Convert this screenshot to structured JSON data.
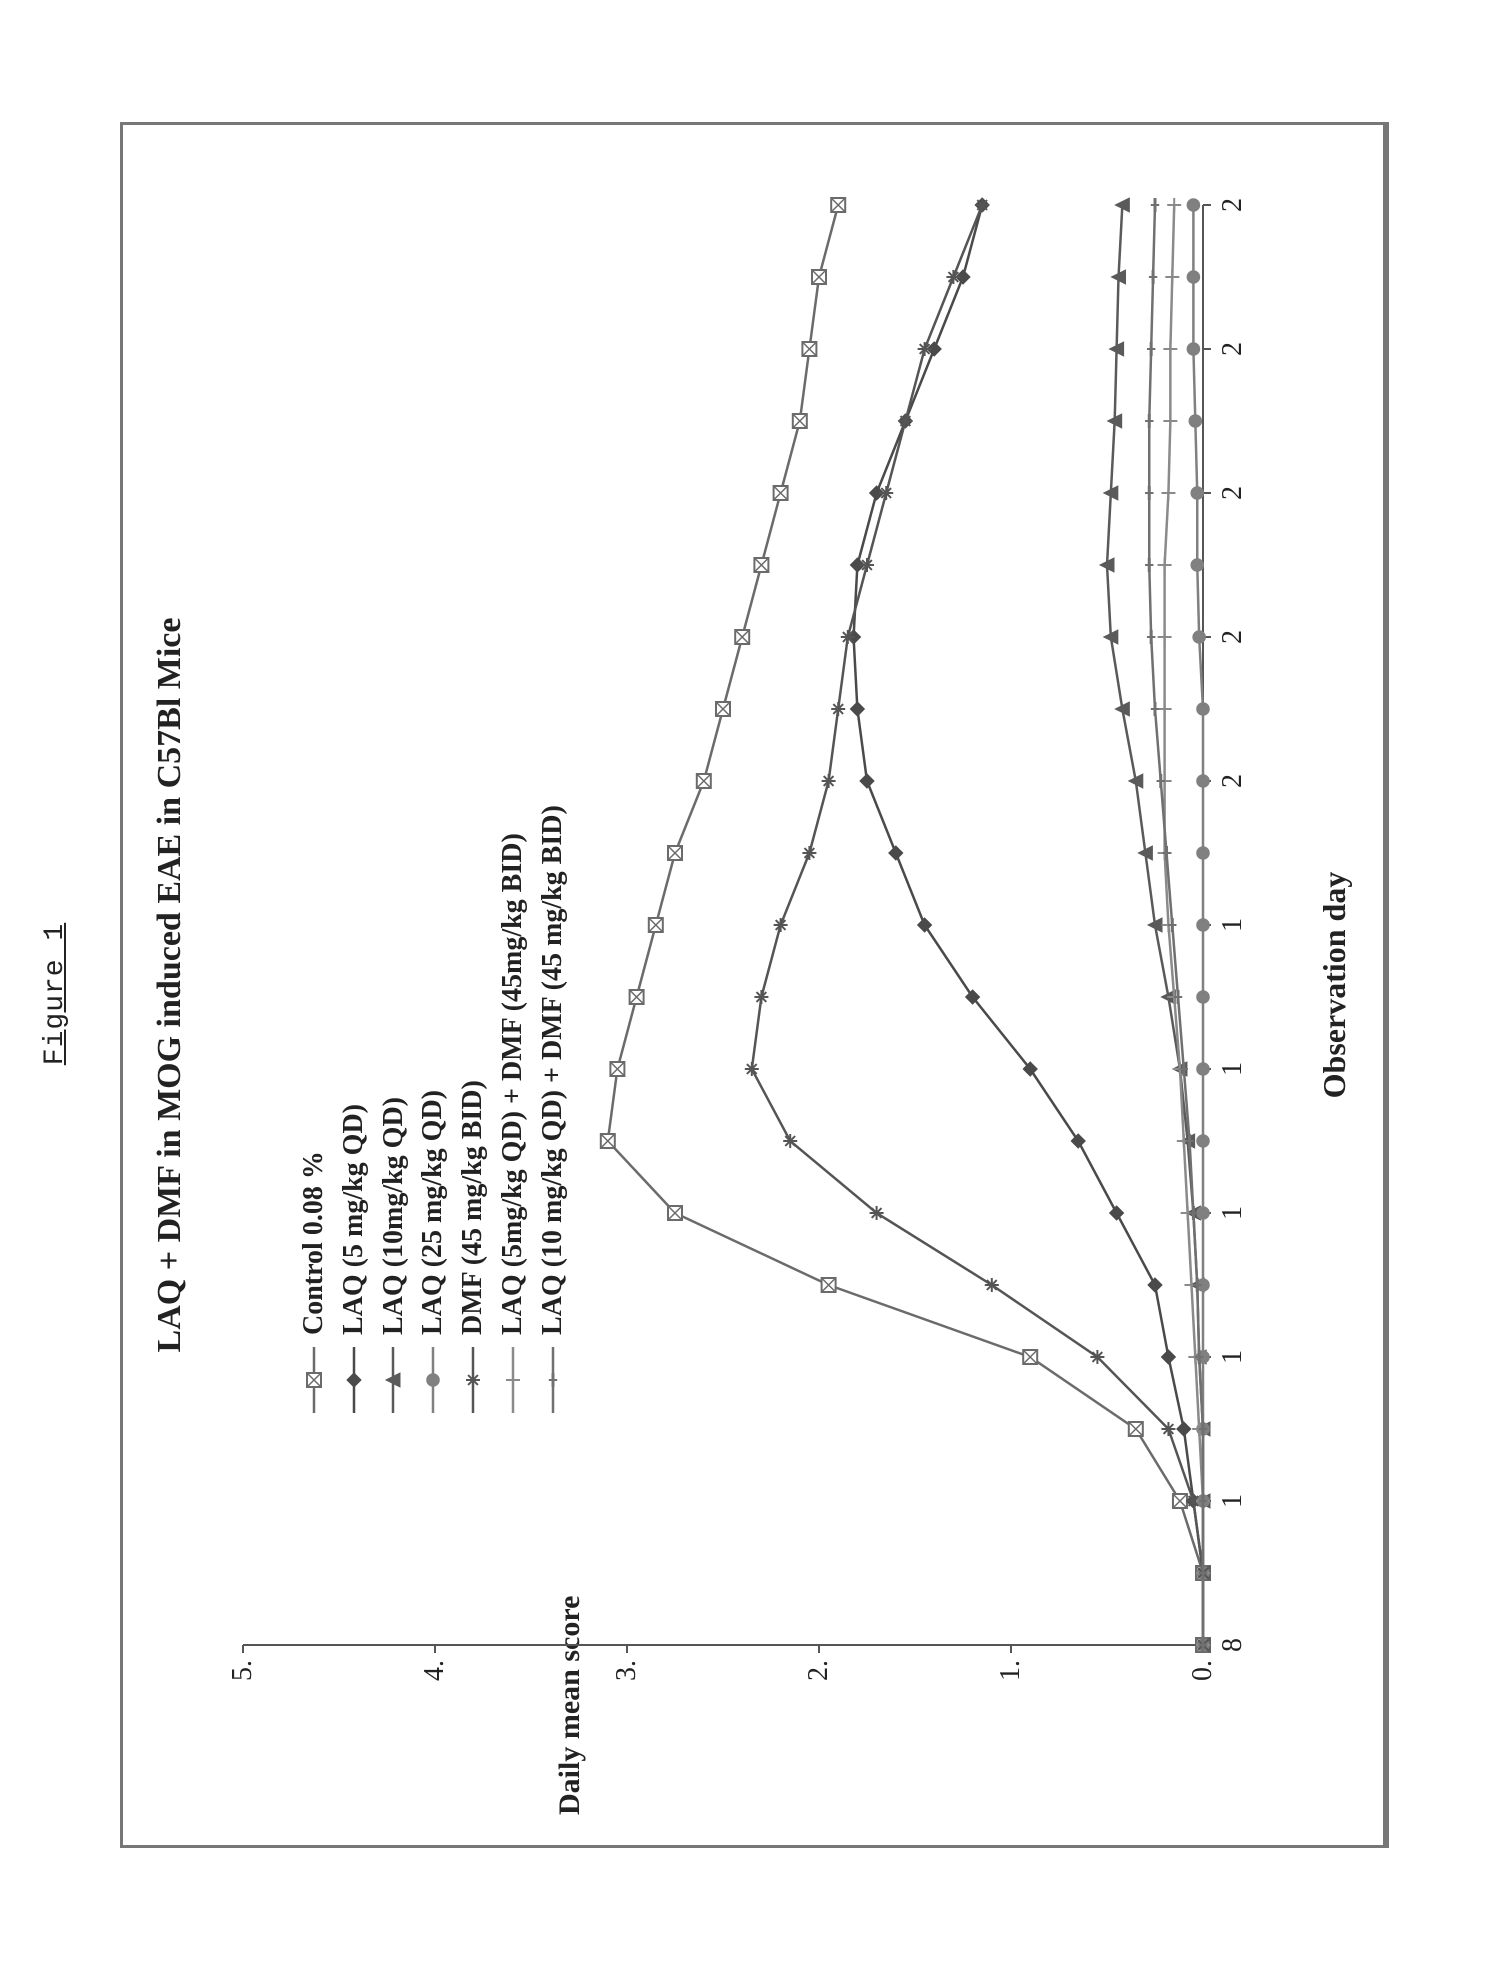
{
  "figure_caption": "Figure 1",
  "chart": {
    "type": "line",
    "title": "LAQ + DMF in MOG induced EAE in C57Bl Mice",
    "title_fontsize": 34,
    "xlabel": "Observation day",
    "ylabel": "Daily mean score",
    "label_fontsize": 30,
    "tick_fontsize": 28,
    "background_color": "#ffffff",
    "frame_border_color": "#777777",
    "axis_color": "#555555",
    "xlim": [
      8,
      28
    ],
    "ylim": [
      0,
      5
    ],
    "ytick_step": 1,
    "x_ticks": [
      8,
      10,
      12,
      14,
      16,
      18,
      20,
      22,
      24,
      26,
      28
    ],
    "x_tick_labels": [
      "8",
      "1",
      "1",
      "1",
      "1",
      "1",
      "2",
      "2",
      "2",
      "2",
      "2"
    ],
    "y_ticks": [
      0,
      1,
      2,
      3,
      4,
      5
    ],
    "y_tick_labels": [
      "0.",
      "1.",
      "2.",
      "3.",
      "4.",
      "5."
    ],
    "x_day_values": [
      8,
      9,
      10,
      11,
      12,
      13,
      14,
      15,
      16,
      17,
      18,
      19,
      20,
      21,
      22,
      23,
      24,
      25,
      26,
      27,
      28
    ],
    "line_width": 2.5,
    "marker_size": 7,
    "series": [
      {
        "name": "Control 0.08 %",
        "marker": "square-x",
        "color": "#6b6b6b",
        "y": [
          0,
          0,
          0.12,
          0.35,
          0.9,
          1.95,
          2.75,
          3.1,
          3.05,
          2.95,
          2.85,
          2.75,
          2.6,
          2.5,
          2.4,
          2.3,
          2.2,
          2.1,
          2.05,
          2.0,
          1.9
        ]
      },
      {
        "name": "LAQ  (5 mg/kg QD)",
        "marker": "diamond",
        "color": "#4a4a4a",
        "y": [
          0,
          0,
          0.05,
          0.1,
          0.18,
          0.25,
          0.45,
          0.65,
          0.9,
          1.2,
          1.45,
          1.6,
          1.75,
          1.8,
          1.82,
          1.8,
          1.7,
          1.55,
          1.4,
          1.25,
          1.15
        ]
      },
      {
        "name": "LAQ  (10mg/kg QD)",
        "marker": "triangle",
        "color": "#5a5a5a",
        "y": [
          0,
          0,
          0,
          0,
          0.02,
          0.03,
          0.05,
          0.08,
          0.12,
          0.18,
          0.25,
          0.3,
          0.35,
          0.42,
          0.48,
          0.5,
          0.48,
          0.46,
          0.45,
          0.44,
          0.42
        ]
      },
      {
        "name": "LAQ  (25 mg/kg QD)",
        "marker": "circle",
        "color": "#808080",
        "y": [
          0,
          0,
          0,
          0,
          0,
          0,
          0,
          0,
          0,
          0,
          0,
          0,
          0,
          0,
          0.02,
          0.03,
          0.03,
          0.04,
          0.05,
          0.05,
          0.05
        ]
      },
      {
        "name": "DMF (45 mg/kg BID)",
        "marker": "asterisk",
        "color": "#555555",
        "y": [
          0,
          0,
          0.05,
          0.18,
          0.55,
          1.1,
          1.7,
          2.15,
          2.35,
          2.3,
          2.2,
          2.05,
          1.95,
          1.9,
          1.85,
          1.75,
          1.65,
          1.55,
          1.45,
          1.3,
          1.15
        ]
      },
      {
        "name": "LAQ  (5mg/kg QD) + DMF (45mg/kg BID)",
        "marker": "plus",
        "color": "#8a8a8a",
        "y": [
          0,
          0,
          0,
          0.02,
          0.04,
          0.06,
          0.08,
          0.1,
          0.12,
          0.15,
          0.18,
          0.2,
          0.2,
          0.2,
          0.2,
          0.2,
          0.18,
          0.17,
          0.17,
          0.16,
          0.15
        ]
      },
      {
        "name": "LAQ  (10 mg/kg QD) + DMF (45 mg/kg BID)",
        "marker": "dash",
        "color": "#707070",
        "y": [
          0,
          0,
          0,
          0,
          0.02,
          0.03,
          0.05,
          0.07,
          0.1,
          0.13,
          0.16,
          0.19,
          0.22,
          0.25,
          0.27,
          0.28,
          0.28,
          0.28,
          0.27,
          0.26,
          0.25
        ]
      }
    ]
  }
}
